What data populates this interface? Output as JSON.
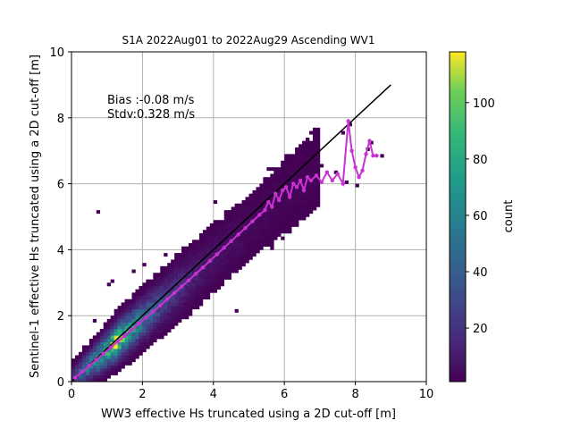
{
  "chart_data": {
    "type": "heatmap",
    "title": "S1A 2022Aug01 to 2022Aug29 Ascending WV1",
    "xlabel": "WW3 effective Hs truncated using a 2D cut-off [m]",
    "ylabel": "Sentinel-1 effective Hs truncated using a 2D cut-off [m]",
    "xlim": [
      0,
      10
    ],
    "ylim": [
      0,
      10
    ],
    "xticks": [
      0,
      2,
      4,
      6,
      8,
      10
    ],
    "yticks": [
      0,
      2,
      4,
      6,
      8,
      10
    ],
    "grid": true,
    "annotation": {
      "bias": "Bias :-0.08 m/s",
      "stdv": "Stdv:0.328 m/s"
    },
    "colorbar": {
      "label": "count",
      "colormap": "viridis",
      "range": [
        1,
        118
      ],
      "ticks": [
        20,
        40,
        60,
        80,
        100
      ]
    },
    "one_to_one_line": {
      "x": [
        0,
        9
      ],
      "y": [
        0,
        9
      ],
      "color": "#000000"
    },
    "mean_curve": {
      "color": "#c832d2",
      "x": [
        0.1,
        0.3,
        0.5,
        0.7,
        0.9,
        1.1,
        1.3,
        1.5,
        1.7,
        1.9,
        2.1,
        2.3,
        2.5,
        2.7,
        2.9,
        3.1,
        3.3,
        3.5,
        3.7,
        3.9,
        4.1,
        4.3,
        4.5,
        4.7,
        4.9,
        5.1,
        5.3,
        5.45,
        5.55,
        5.65,
        5.75,
        5.85,
        5.95,
        6.05,
        6.15,
        6.25,
        6.35,
        6.45,
        6.55,
        6.65,
        6.75,
        6.9,
        7.05,
        7.2,
        7.35,
        7.5,
        7.65,
        7.8,
        7.9,
        8.0,
        8.1,
        8.2,
        8.3,
        8.4,
        8.5,
        8.6
      ],
      "y": [
        0.12,
        0.3,
        0.48,
        0.66,
        0.85,
        1.03,
        1.21,
        1.39,
        1.58,
        1.76,
        1.94,
        2.12,
        2.31,
        2.5,
        2.69,
        2.88,
        3.07,
        3.27,
        3.46,
        3.66,
        3.86,
        4.06,
        4.26,
        4.46,
        4.66,
        4.86,
        5.06,
        5.2,
        5.45,
        5.3,
        5.7,
        5.5,
        5.8,
        5.9,
        5.6,
        6.0,
        5.9,
        6.1,
        5.8,
        6.2,
        6.1,
        6.25,
        6.05,
        6.35,
        6.1,
        6.3,
        6.0,
        7.9,
        7.0,
        6.5,
        6.2,
        6.4,
        6.9,
        7.3,
        6.85,
        6.85
      ]
    },
    "heatmap_cells": {
      "bin_size": 0.1,
      "description_values": "cells listed as [x_center, y_center, count]",
      "cells": []
    }
  }
}
